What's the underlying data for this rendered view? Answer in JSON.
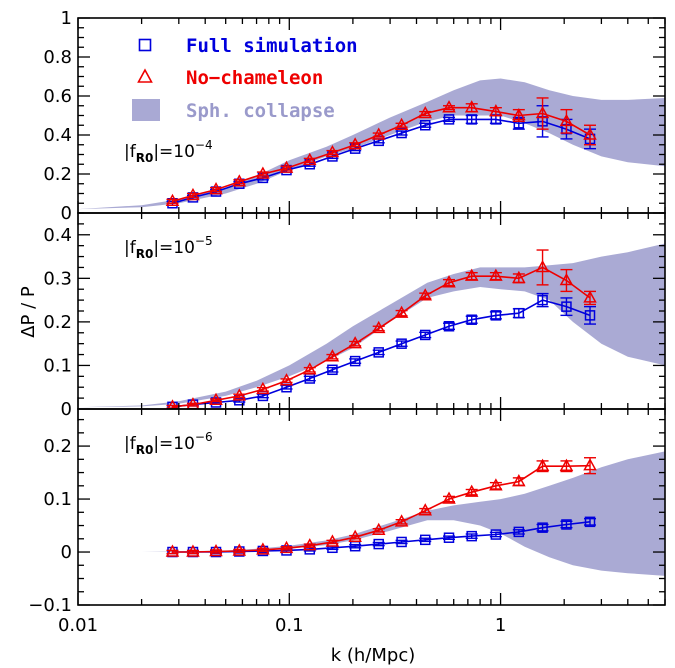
{
  "chart_data": {
    "type": "line",
    "xlabel": "k (h/Mpc)",
    "ylabel": "ΔP / P",
    "xscale": "log",
    "xlim": [
      0.01,
      6
    ],
    "x_tick_labels": [
      "0.01",
      "0.1",
      "1"
    ],
    "legend": {
      "placement": "top-left",
      "entries": [
        {
          "label": "Full simulation",
          "marker": "square",
          "color": "#0000dd"
        },
        {
          "label": "No−chameleon",
          "marker": "triangle",
          "color": "#ee0000"
        },
        {
          "label": "Sph. collapse",
          "marker": "filled-box",
          "color": "#a9a9d4",
          "text_color": "#9a9acb"
        }
      ]
    },
    "colors": {
      "full": "#0000dd",
      "nocham": "#ee0000",
      "band": "#aaaad4"
    },
    "panels": [
      {
        "param_prefix": "|f",
        "param_sub": "R0",
        "param_suffix": "|=10",
        "param_exp": "−4",
        "ylim": [
          0,
          1
        ],
        "y_tick_labels": [
          "0",
          "0.2",
          "0.4",
          "0.6",
          "0.8",
          "1"
        ],
        "y_tick_values": [
          0,
          0.2,
          0.4,
          0.6,
          0.8,
          1
        ],
        "minor_step": 0.05,
        "x": [
          0.028,
          0.035,
          0.045,
          0.058,
          0.075,
          0.097,
          0.125,
          0.16,
          0.205,
          0.265,
          0.34,
          0.44,
          0.57,
          0.73,
          0.95,
          1.22,
          1.58,
          2.05,
          2.65
        ],
        "full": [
          0.05,
          0.08,
          0.11,
          0.15,
          0.18,
          0.22,
          0.25,
          0.29,
          0.33,
          0.37,
          0.41,
          0.45,
          0.48,
          0.48,
          0.48,
          0.46,
          0.47,
          0.43,
          0.38
        ],
        "full_err": [
          0.01,
          0.01,
          0.01,
          0.01,
          0.01,
          0.01,
          0.01,
          0.01,
          0.01,
          0.01,
          0.01,
          0.01,
          0.01,
          0.02,
          0.02,
          0.03,
          0.08,
          0.05,
          0.05
        ],
        "nocham": [
          0.06,
          0.09,
          0.12,
          0.16,
          0.2,
          0.23,
          0.27,
          0.31,
          0.35,
          0.4,
          0.45,
          0.51,
          0.54,
          0.54,
          0.52,
          0.5,
          0.51,
          0.47,
          0.4
        ],
        "nocham_err": [
          0.01,
          0.01,
          0.01,
          0.01,
          0.01,
          0.01,
          0.01,
          0.01,
          0.01,
          0.01,
          0.01,
          0.01,
          0.01,
          0.02,
          0.02,
          0.03,
          0.08,
          0.06,
          0.05
        ],
        "band_x": [
          0.01,
          0.02,
          0.03,
          0.05,
          0.07,
          0.1,
          0.15,
          0.2,
          0.3,
          0.45,
          0.6,
          0.8,
          1.0,
          1.3,
          1.7,
          2.2,
          3.0,
          4.0,
          6.0
        ],
        "band_low": [
          0.02,
          0.03,
          0.05,
          0.1,
          0.15,
          0.22,
          0.29,
          0.33,
          0.4,
          0.47,
          0.5,
          0.5,
          0.5,
          0.46,
          0.41,
          0.35,
          0.29,
          0.26,
          0.24
        ],
        "band_high": [
          0.02,
          0.04,
          0.07,
          0.13,
          0.19,
          0.27,
          0.34,
          0.4,
          0.49,
          0.57,
          0.63,
          0.68,
          0.69,
          0.67,
          0.63,
          0.6,
          0.58,
          0.58,
          0.59
        ]
      },
      {
        "param_prefix": "|f",
        "param_sub": "R0",
        "param_suffix": "|=10",
        "param_exp": "−5",
        "ylim": [
          0,
          0.45
        ],
        "y_tick_labels": [
          "0",
          "0.1",
          "0.2",
          "0.3",
          "0.4"
        ],
        "y_tick_values": [
          0,
          0.1,
          0.2,
          0.3,
          0.4
        ],
        "minor_step": 0.025,
        "x": [
          0.028,
          0.035,
          0.045,
          0.058,
          0.075,
          0.097,
          0.125,
          0.16,
          0.205,
          0.265,
          0.34,
          0.44,
          0.57,
          0.73,
          0.95,
          1.22,
          1.58,
          2.05,
          2.65
        ],
        "full": [
          0.005,
          0.01,
          0.015,
          0.02,
          0.03,
          0.05,
          0.07,
          0.09,
          0.11,
          0.13,
          0.15,
          0.17,
          0.19,
          0.205,
          0.215,
          0.22,
          0.25,
          0.235,
          0.215
        ],
        "full_err": [
          0.003,
          0.003,
          0.003,
          0.004,
          0.004,
          0.004,
          0.005,
          0.005,
          0.005,
          0.005,
          0.006,
          0.006,
          0.007,
          0.008,
          0.008,
          0.01,
          0.015,
          0.02,
          0.02
        ],
        "nocham": [
          0.005,
          0.01,
          0.02,
          0.03,
          0.045,
          0.065,
          0.09,
          0.12,
          0.15,
          0.185,
          0.22,
          0.26,
          0.29,
          0.305,
          0.305,
          0.3,
          0.325,
          0.295,
          0.255
        ],
        "nocham_err": [
          0.003,
          0.003,
          0.003,
          0.004,
          0.004,
          0.004,
          0.005,
          0.005,
          0.005,
          0.005,
          0.006,
          0.006,
          0.007,
          0.008,
          0.008,
          0.01,
          0.04,
          0.025,
          0.015
        ],
        "band_x": [
          0.01,
          0.02,
          0.03,
          0.05,
          0.07,
          0.1,
          0.15,
          0.2,
          0.3,
          0.45,
          0.6,
          0.8,
          1.0,
          1.3,
          1.7,
          2.2,
          3.0,
          4.0,
          6.0
        ],
        "band_low": [
          0.004,
          0.006,
          0.012,
          0.03,
          0.05,
          0.075,
          0.11,
          0.14,
          0.2,
          0.255,
          0.27,
          0.28,
          0.275,
          0.27,
          0.25,
          0.2,
          0.15,
          0.12,
          0.1
        ],
        "band_high": [
          0.004,
          0.008,
          0.018,
          0.04,
          0.065,
          0.1,
          0.15,
          0.19,
          0.24,
          0.29,
          0.31,
          0.325,
          0.325,
          0.325,
          0.33,
          0.335,
          0.35,
          0.36,
          0.38
        ]
      },
      {
        "param_prefix": "|f",
        "param_sub": "R0",
        "param_suffix": "|=10",
        "param_exp": "−6",
        "ylim": [
          -0.1,
          0.27
        ],
        "y_tick_labels": [
          "−0.1",
          "0",
          "0.1",
          "0.2"
        ],
        "y_tick_values": [
          -0.1,
          0,
          0.1,
          0.2
        ],
        "minor_step": 0.025,
        "x": [
          0.028,
          0.035,
          0.045,
          0.058,
          0.075,
          0.097,
          0.125,
          0.16,
          0.205,
          0.265,
          0.34,
          0.44,
          0.57,
          0.73,
          0.95,
          1.22,
          1.58,
          2.05,
          2.65
        ],
        "full": [
          0.0,
          0.0,
          0.0,
          0.001,
          0.002,
          0.003,
          0.005,
          0.008,
          0.011,
          0.015,
          0.019,
          0.023,
          0.027,
          0.03,
          0.033,
          0.038,
          0.046,
          0.052,
          0.057
        ],
        "full_err": [
          0.003,
          0.003,
          0.003,
          0.003,
          0.003,
          0.003,
          0.003,
          0.003,
          0.003,
          0.003,
          0.003,
          0.003,
          0.003,
          0.004,
          0.004,
          0.004,
          0.006,
          0.006,
          0.006
        ],
        "nocham": [
          0.0,
          0.0,
          0.001,
          0.002,
          0.004,
          0.007,
          0.012,
          0.019,
          0.028,
          0.041,
          0.057,
          0.078,
          0.1,
          0.113,
          0.125,
          0.133,
          0.162,
          0.162,
          0.163
        ],
        "nocham_err": [
          0.003,
          0.003,
          0.003,
          0.003,
          0.003,
          0.003,
          0.003,
          0.003,
          0.003,
          0.003,
          0.004,
          0.004,
          0.005,
          0.005,
          0.006,
          0.007,
          0.01,
          0.01,
          0.015
        ],
        "band_x": [
          0.01,
          0.02,
          0.03,
          0.05,
          0.07,
          0.1,
          0.15,
          0.2,
          0.3,
          0.45,
          0.6,
          0.8,
          1.0,
          1.3,
          1.7,
          2.2,
          3.0,
          4.0,
          6.0
        ],
        "band_low": [
          0.0,
          0.0,
          0.0,
          0.001,
          0.003,
          0.006,
          0.013,
          0.022,
          0.04,
          0.06,
          0.06,
          0.05,
          0.035,
          0.01,
          -0.01,
          -0.025,
          -0.035,
          -0.04,
          -0.045
        ],
        "band_high": [
          0.0,
          0.0,
          0.001,
          0.003,
          0.006,
          0.012,
          0.022,
          0.033,
          0.055,
          0.078,
          0.088,
          0.095,
          0.1,
          0.11,
          0.125,
          0.14,
          0.16,
          0.175,
          0.19
        ]
      }
    ]
  }
}
